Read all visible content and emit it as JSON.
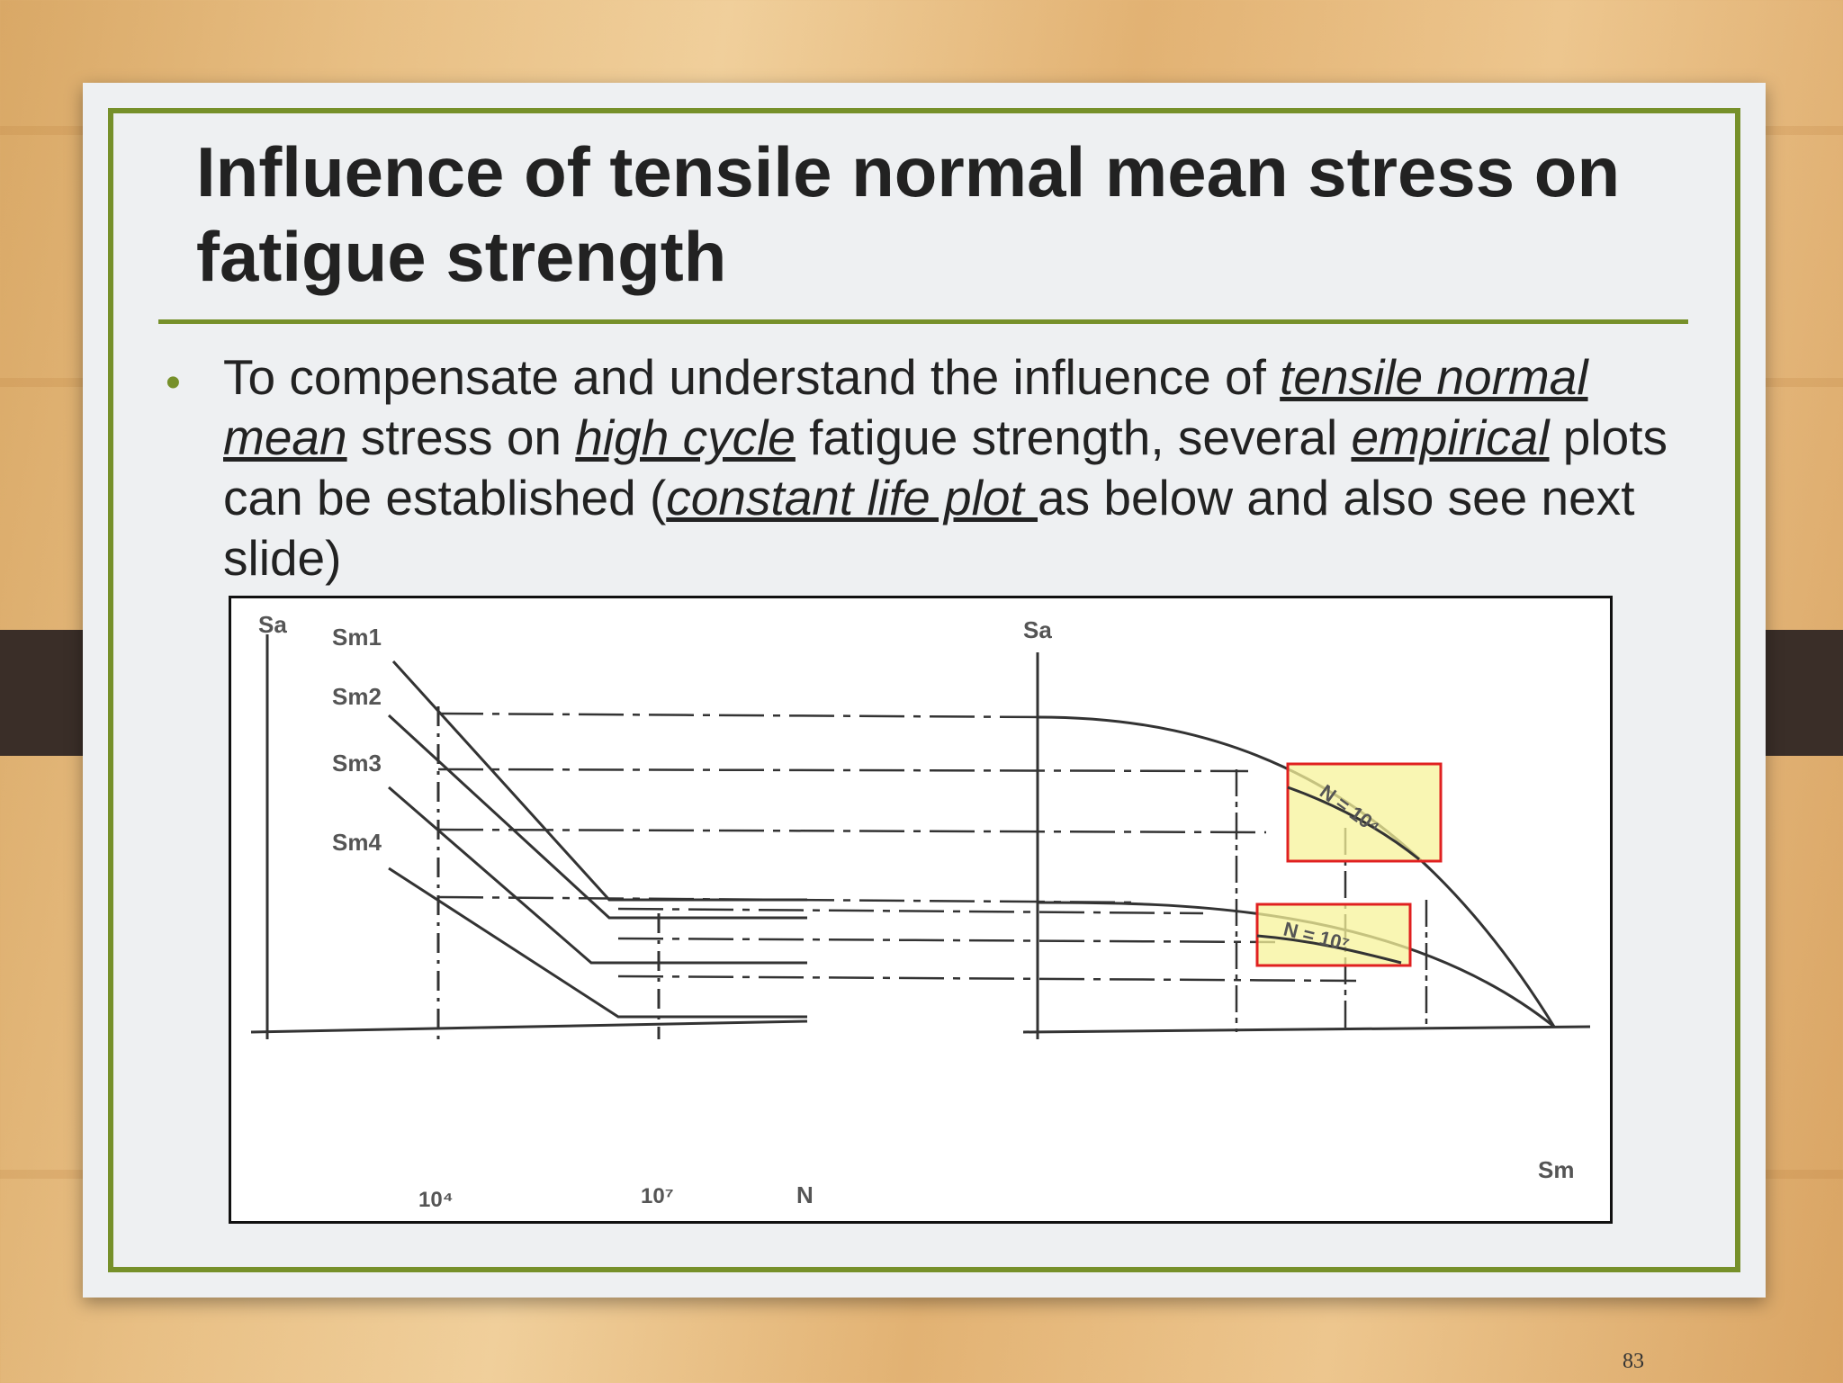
{
  "slide": {
    "title": "Influence of tensile normal mean stress on fatigue strength",
    "bullet": {
      "t1": "To compensate and understand the influence of ",
      "e1": "tensile normal mean",
      "t2": " stress on ",
      "e2": "high cycle",
      "t3": " fatigue strength, several ",
      "e3": "empirical",
      "t4": " plots can be established (",
      "e4": "constant life plot ",
      "t5": "as below and also see next slide)"
    },
    "page_number": "83"
  },
  "figure": {
    "left_axis_label": "Sa",
    "curve_labels": [
      "Sm1",
      "Sm2",
      "Sm3",
      "Sm4"
    ],
    "x_ticks": [
      "10⁴",
      "10⁷"
    ],
    "x_axis_label": "N",
    "right_axis_label": "Sa",
    "right_x_label": "Sm",
    "annotation_1": "N = 10⁴",
    "annotation_2": "N = 10⁷",
    "highlight_color": "#f7f39a",
    "box_color": "#e02020"
  }
}
